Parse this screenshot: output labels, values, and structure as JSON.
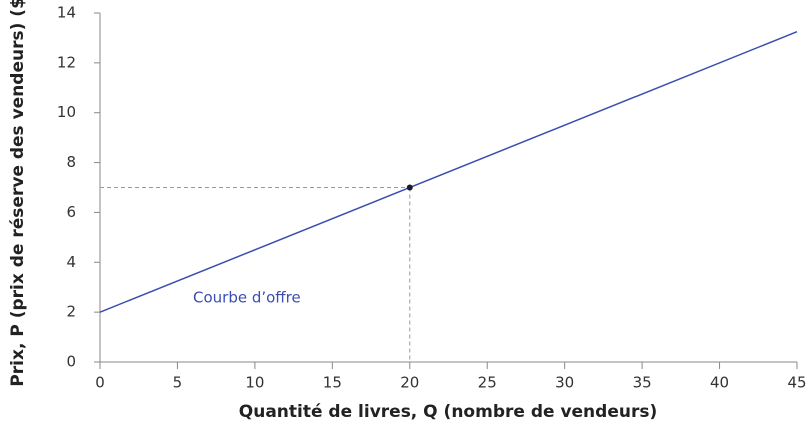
{
  "chart_data": {
    "type": "line",
    "x_label": "Quantité de livres, Q (nombre de vendeurs)",
    "y_label": "Prix, P (prix de réserve des vendeurs) ($)",
    "annotation": "Courbe d’offre",
    "series": [
      {
        "name": "Courbe d’offre",
        "color": "#3b4db0",
        "x": [
          0,
          45
        ],
        "values": [
          2,
          13.25
        ]
      }
    ],
    "marker": {
      "x": 20,
      "y": 7,
      "color": "#1a1a2e"
    },
    "xlim": [
      0,
      45
    ],
    "xticks": [
      0,
      5,
      10,
      15,
      20,
      25,
      30,
      35,
      40,
      45
    ],
    "ylim": [
      0,
      14
    ],
    "yticks": [
      0,
      2,
      4,
      6,
      8,
      10,
      12,
      14
    ],
    "grid": false
  }
}
